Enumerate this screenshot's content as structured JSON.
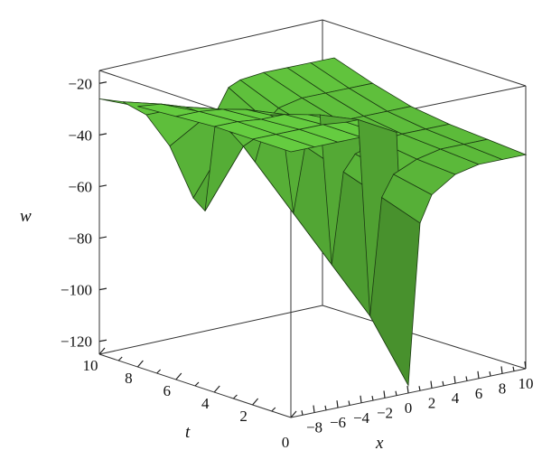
{
  "chart_data": {
    "type": "surface",
    "xlabel": "x",
    "ylabel": "t",
    "zlabel": "w",
    "xlim": [
      -10,
      10
    ],
    "tlim": [
      0,
      10
    ],
    "zlim": [
      -125,
      -15
    ],
    "x_ticks": [
      "-8",
      "-6",
      "-4",
      "-2",
      "0",
      "2",
      "4",
      "6",
      "8",
      "10"
    ],
    "t_ticks": [
      "0",
      "2",
      "4",
      "6",
      "8",
      "10"
    ],
    "z_ticks": [
      "-20",
      "-40",
      "-60",
      "-80",
      "-100",
      "-120"
    ],
    "surface_color": "#5fc03c",
    "mesh_color": "#1b3a12",
    "x_samples": [
      -10,
      -8,
      -6,
      -4,
      -2,
      -1,
      0,
      1,
      2,
      4,
      6,
      8,
      10
    ],
    "t_samples": [
      0,
      2,
      4,
      6,
      8,
      10
    ],
    "w_values": [
      [
        -22,
        -22,
        -22,
        -22,
        -23,
        -23,
        -122,
        -60,
        -50,
        -44,
        -42,
        -42,
        -42
      ],
      [
        -22,
        -22,
        -22,
        -22,
        -23,
        -23,
        -100,
        -55,
        -47,
        -43,
        -41,
        -41,
        -41
      ],
      [
        -22,
        -22,
        -23,
        -23,
        -25,
        -26,
        -85,
        -50,
        -44,
        -41,
        -40,
        -40,
        -40
      ],
      [
        -23,
        -23,
        -24,
        -26,
        -30,
        -33,
        -70,
        -45,
        -40,
        -38,
        -38,
        -38,
        -38
      ],
      [
        -24,
        -25,
        -28,
        -33,
        -42,
        -48,
        -55,
        -40,
        -36,
        -34,
        -34,
        -34,
        -34
      ],
      [
        -26,
        -29,
        -36,
        -50,
        -72,
        -78,
        -40,
        -32,
        -30,
        -29,
        -29,
        -29,
        -29
      ]
    ]
  }
}
